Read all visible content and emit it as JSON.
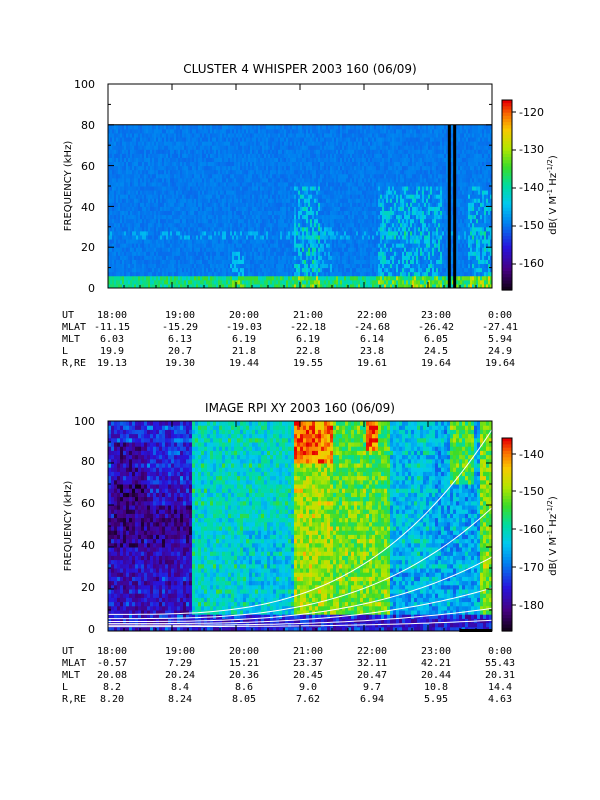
{
  "chart_data": [
    {
      "type": "heatmap",
      "title": "CLUSTER 4 WHISPER 2003 160 (06/09)",
      "ylabel": "FREQUENCY (kHz)",
      "ylim": [
        0,
        100
      ],
      "yticks": [
        "0",
        "20",
        "40",
        "60",
        "80",
        "100"
      ],
      "xlim": [
        "18:00",
        "0:00"
      ],
      "colorbar": {
        "label_parts": [
          "dB( V M",
          "-1",
          " Hz",
          "-1/2",
          ")"
        ],
        "ticks": [
          "-120",
          "-130",
          "-140",
          "-150",
          "-160"
        ],
        "range": [
          -167,
          -117
        ],
        "colormap": "rainbow"
      },
      "background_level": -150,
      "data_ceiling_khz": 80,
      "black_bars_x": [
        "23:20",
        "23:25"
      ],
      "ephemeris": {
        "labels": [
          "UT",
          "MLAT",
          "MLT",
          "L",
          "R,RE"
        ],
        "columns": [
          [
            "18:00",
            "-11.15",
            "6.03",
            "19.9",
            "19.13"
          ],
          [
            "19:00",
            "-15.29",
            "6.13",
            "20.7",
            "19.30"
          ],
          [
            "20:00",
            "-19.03",
            "6.19",
            "21.8",
            "19.44"
          ],
          [
            "21:00",
            "-22.18",
            "6.19",
            "22.8",
            "19.55"
          ],
          [
            "22:00",
            "-24.68",
            "6.14",
            "23.8",
            "19.61"
          ],
          [
            "23:00",
            "-26.42",
            "6.05",
            "24.5",
            "19.64"
          ],
          [
            "0:00",
            "-27.41",
            "5.94",
            "24.9",
            "19.64"
          ]
        ]
      }
    },
    {
      "type": "heatmap",
      "title": "IMAGE RPI XY 2003 160 (06/09)",
      "ylabel": "FREQUENCY (kHz)",
      "ylim": [
        0,
        100
      ],
      "yticks": [
        "0",
        "20",
        "40",
        "60",
        "80",
        "100"
      ],
      "xlim": [
        "18:00",
        "0:00"
      ],
      "colorbar": {
        "label_parts": [
          "dB( V M",
          "-1",
          " Hz",
          "-1/2",
          ")"
        ],
        "ticks": [
          "-140",
          "-150",
          "-160",
          "-170",
          "-180"
        ],
        "range": [
          -186,
          -133
        ],
        "colormap": "rainbow"
      },
      "ephemeris": {
        "labels": [
          "UT",
          "MLAT",
          "MLT",
          "L",
          "R,RE"
        ],
        "columns": [
          [
            "18:00",
            "-0.57",
            "20.08",
            "8.2",
            "8.20"
          ],
          [
            "19:00",
            "7.29",
            "20.24",
            "8.4",
            "8.24"
          ],
          [
            "20:00",
            "15.21",
            "20.36",
            "8.6",
            "8.05"
          ],
          [
            "21:00",
            "23.37",
            "20.45",
            "9.0",
            "7.62"
          ],
          [
            "22:00",
            "32.11",
            "20.47",
            "9.7",
            "6.94"
          ],
          [
            "23:00",
            "42.21",
            "20.44",
            "10.8",
            "5.95"
          ],
          [
            "0:00",
            "55.43",
            "20.31",
            "14.4",
            "4.63"
          ]
        ]
      }
    }
  ]
}
